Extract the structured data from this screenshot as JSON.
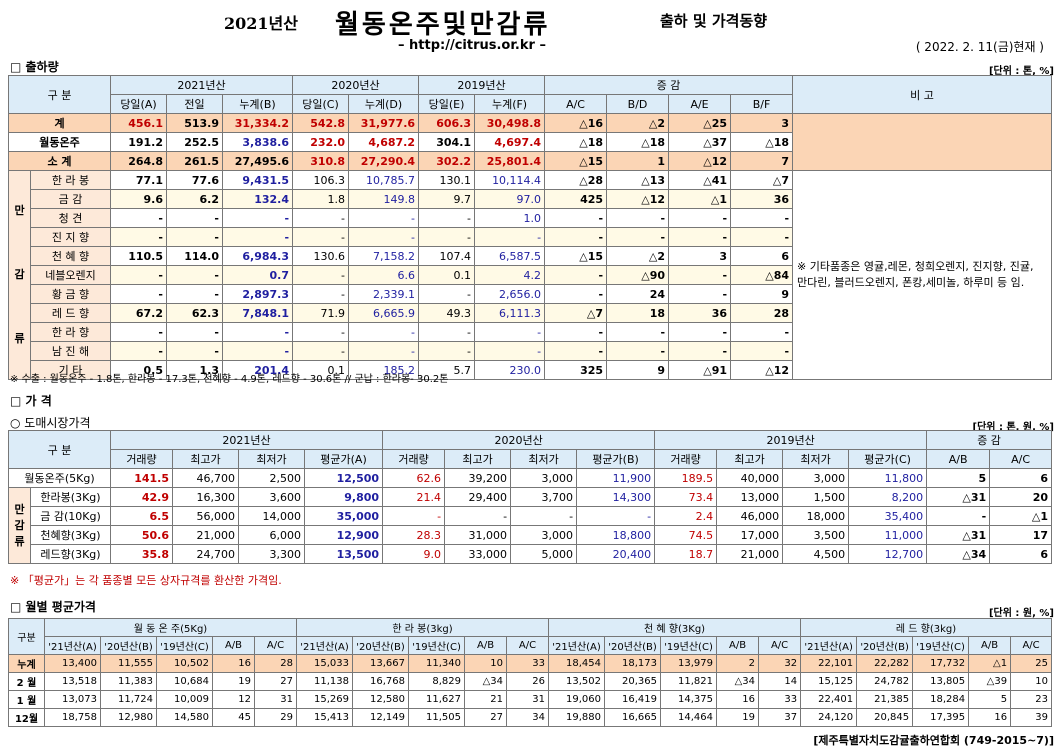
{
  "header": {
    "year_label": "2021년산",
    "title": "월동온주및만감류",
    "subtitle": "출하 및 가격동향",
    "url": "– http://citrus.or.kr –",
    "date": "( 2022. 2. 11(금)현재 )"
  },
  "s1": {
    "title": "□ 출하량",
    "unit": "[단위 : 톤, %]",
    "h_gubun": "구   분",
    "h_2021": "2021년산",
    "h_2020": "2020년산",
    "h_2019": "2019년산",
    "h_inc": "증      감",
    "h_remark": "비 고",
    "sub": [
      "당일(A)",
      "전일",
      "누계(B)",
      "당일(C)",
      "누계(D)",
      "당일(E)",
      "누계(F)",
      "A/C",
      "B/D",
      "A/E",
      "B/F"
    ],
    "side": [
      "만",
      "감",
      "류"
    ],
    "remark": "※ 기타품종은 영귤,레몬, 청희오렌지, 진지향, 진귤, 만다린, 블러드오렌지, 폰캉,세미놀, 하루미 등 임.",
    "rows": [
      {
        "label": "계",
        "v": [
          "456.1",
          "513.9",
          "31,334.2",
          "542.8",
          "31,977.6",
          "606.3",
          "30,498.8",
          "△16",
          "△2",
          "△25",
          "3"
        ]
      },
      {
        "label": "월동온주",
        "v": [
          "191.2",
          "252.5",
          "3,838.6",
          "232.0",
          "4,687.2",
          "304.1",
          "4,697.4",
          "△18",
          "△18",
          "△37",
          "△18"
        ]
      },
      {
        "label": "소   계",
        "v": [
          "264.8",
          "261.5",
          "27,495.6",
          "310.8",
          "27,290.4",
          "302.2",
          "25,801.4",
          "△15",
          "1",
          "△12",
          "7"
        ]
      },
      {
        "label": "한 라 봉",
        "v": [
          "77.1",
          "77.6",
          "9,431.5",
          "106.3",
          "10,785.7",
          "130.1",
          "10,114.4",
          "△28",
          "△13",
          "△41",
          "△7"
        ]
      },
      {
        "label": "금   감",
        "v": [
          "9.6",
          "6.2",
          "132.4",
          "1.8",
          "149.8",
          "9.7",
          "97.0",
          "425",
          "△12",
          "△1",
          "36"
        ]
      },
      {
        "label": "청   견",
        "v": [
          "-",
          "-",
          "-",
          "-",
          "-",
          "-",
          "1.0",
          "-",
          "-",
          "-",
          "-"
        ]
      },
      {
        "label": "진 지 향",
        "v": [
          "-",
          "-",
          "-",
          "-",
          "-",
          "-",
          "-",
          "-",
          "-",
          "-",
          "-"
        ]
      },
      {
        "label": "천 혜 향",
        "v": [
          "110.5",
          "114.0",
          "6,984.3",
          "130.6",
          "7,158.2",
          "107.4",
          "6,587.5",
          "△15",
          "△2",
          "3",
          "6"
        ]
      },
      {
        "label": "네블오렌지",
        "v": [
          "-",
          "-",
          "0.7",
          "-",
          "6.6",
          "0.1",
          "4.2",
          "-",
          "△90",
          "-",
          "△84"
        ]
      },
      {
        "label": "황 금 향",
        "v": [
          "-",
          "-",
          "2,897.3",
          "-",
          "2,339.1",
          "-",
          "2,656.0",
          "-",
          "24",
          "-",
          "9"
        ]
      },
      {
        "label": "레 드 향",
        "v": [
          "67.2",
          "62.3",
          "7,848.1",
          "71.9",
          "6,665.9",
          "49.3",
          "6,111.3",
          "△7",
          "18",
          "36",
          "28"
        ]
      },
      {
        "label": "한 라 향",
        "v": [
          "-",
          "-",
          "-",
          "-",
          "-",
          "-",
          "-",
          "-",
          "-",
          "-",
          "-"
        ]
      },
      {
        "label": "남 진 해",
        "v": [
          "-",
          "-",
          "-",
          "-",
          "-",
          "-",
          "-",
          "-",
          "-",
          "-",
          "-"
        ]
      },
      {
        "label": "기   타",
        "v": [
          "0.5",
          "1.3",
          "201.4",
          "0.1",
          "185.2",
          "5.7",
          "230.0",
          "325",
          "9",
          "△91",
          "△12"
        ]
      }
    ],
    "export_note": "※ 수출 :  월동온주 - 1.8톤, 한라봉 - 17.3톤,  천혜향 - 4.9톤, 레드향 - 30.6톤  //  군납 : 한라봉- 30.2톤"
  },
  "s2": {
    "title": "□ 가      격",
    "subtitle": "○ 도매시장가격",
    "unit": "[단위 : 톤, 원, %]",
    "h_gubun": "구   분",
    "h_2021": "2021년산",
    "h_2020": "2020년산",
    "h_2019": "2019년산",
    "h_inc": "증  감",
    "sub": [
      "거래량",
      "최고가",
      "최저가",
      "평균가(A)",
      "거래량",
      "최고가",
      "최저가",
      "평균가(B)",
      "거래량",
      "최고가",
      "최저가",
      "평균가(C)",
      "A/B",
      "A/C"
    ],
    "side": "만감류",
    "rows": [
      {
        "label": "월동온주(5Kg)",
        "v": [
          "141.5",
          "46,700",
          "2,500",
          "12,500",
          "62.6",
          "39,200",
          "3,000",
          "11,900",
          "189.5",
          "40,000",
          "3,000",
          "11,800",
          "5",
          "6"
        ]
      },
      {
        "label": "한라봉(3Kg)",
        "v": [
          "42.9",
          "16,300",
          "3,600",
          "9,800",
          "21.4",
          "29,400",
          "3,700",
          "14,300",
          "73.4",
          "13,000",
          "1,500",
          "8,200",
          "△31",
          "20"
        ]
      },
      {
        "label": "금  감(10Kg)",
        "v": [
          "6.5",
          "56,000",
          "14,000",
          "35,000",
          "-",
          "-",
          "-",
          "-",
          "2.4",
          "46,000",
          "18,000",
          "35,400",
          "-",
          "△1"
        ]
      },
      {
        "label": "천혜향(3Kg)",
        "v": [
          "50.6",
          "21,000",
          "6,000",
          "12,900",
          "28.3",
          "31,000",
          "3,000",
          "18,800",
          "74.5",
          "17,000",
          "3,500",
          "11,000",
          "△31",
          "17"
        ]
      },
      {
        "label": "레드향(3Kg)",
        "v": [
          "35.8",
          "24,700",
          "3,300",
          "13,500",
          "9.0",
          "33,000",
          "5,000",
          "20,400",
          "18.7",
          "21,000",
          "4,500",
          "12,700",
          "△34",
          "6"
        ]
      }
    ],
    "note": "※ 「평균가」는 각 품종별 모든 상자규격를 환산한 가격임."
  },
  "s3": {
    "title": "□ 월별 평균가격",
    "unit": "[단위 : 원, %]",
    "h_gubun": "구분",
    "groups": [
      "월 동 온 주(5Kg)",
      "한 라 봉(3kg)",
      "천 혜 향(3Kg)",
      "레 드 향(3kg)"
    ],
    "sub": [
      "'21년산(A)",
      "'20년산(B)",
      "'19년산(C)",
      "A/B",
      "A/C"
    ],
    "rows": [
      {
        "label": "누계",
        "v": [
          "13,400",
          "11,555",
          "10,502",
          "16",
          "28",
          "15,033",
          "13,667",
          "11,340",
          "10",
          "33",
          "18,454",
          "18,173",
          "13,979",
          "2",
          "32",
          "22,101",
          "22,282",
          "17,732",
          "△1",
          "25"
        ]
      },
      {
        "label": "2 월",
        "v": [
          "13,518",
          "11,383",
          "10,684",
          "19",
          "27",
          "11,138",
          "16,768",
          "8,829",
          "△34",
          "26",
          "13,502",
          "20,365",
          "11,821",
          "△34",
          "14",
          "15,125",
          "24,782",
          "13,805",
          "△39",
          "10"
        ]
      },
      {
        "label": "1 월",
        "v": [
          "13,073",
          "11,724",
          "10,009",
          "12",
          "31",
          "15,269",
          "12,580",
          "11,627",
          "21",
          "31",
          "19,060",
          "16,419",
          "14,375",
          "16",
          "33",
          "22,401",
          "21,385",
          "18,284",
          "5",
          "23"
        ]
      },
      {
        "label": "12월",
        "v": [
          "18,758",
          "12,980",
          "14,580",
          "45",
          "29",
          "15,413",
          "12,149",
          "11,505",
          "27",
          "34",
          "19,880",
          "16,665",
          "14,464",
          "19",
          "37",
          "24,120",
          "20,845",
          "17,395",
          "16",
          "39"
        ]
      }
    ]
  },
  "footer": "[제주특별자치도감귤출하연합회 (749-2015~7)]"
}
